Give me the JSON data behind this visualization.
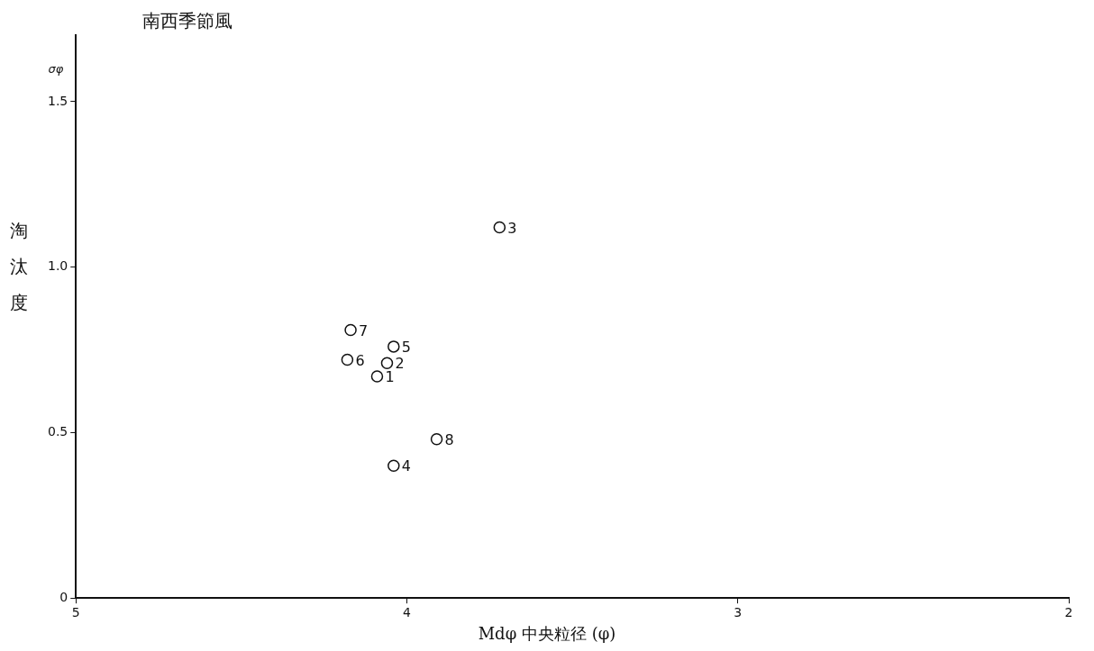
{
  "chart_data": {
    "type": "scatter",
    "title": "南西季節風",
    "xlabel": "Mdφ 中央粒径 (φ)",
    "ylabel": "淘汰度",
    "x": [
      4.09,
      4.06,
      3.72,
      4.04,
      4.04,
      4.18,
      4.17,
      3.91
    ],
    "values": [
      0.67,
      0.71,
      1.12,
      0.4,
      0.76,
      0.72,
      0.81,
      0.48
    ],
    "color": "#111111",
    "marker": "circle",
    "grid": false,
    "legend": false,
    "xlim": [
      5,
      2
    ],
    "xticks": [
      5,
      4,
      3,
      2
    ],
    "ylim": [
      0,
      1.7
    ],
    "yticks": [
      0,
      {
        "value": 0.5,
        "label": "0.5"
      },
      {
        "value": 1,
        "label": "1.0"
      },
      {
        "value": 1.5,
        "label": "1.5"
      }
    ],
    "annotations": [
      "σφ",
      {
        "text": "1",
        "x": 4.09,
        "y": 0.67
      },
      {
        "text": "2",
        "x": 4.06,
        "y": 0.71
      },
      {
        "text": "3",
        "x": 3.72,
        "y": 1.12
      },
      {
        "text": "4",
        "x": 4.04,
        "y": 0.4
      },
      {
        "text": "5",
        "x": 4.04,
        "y": 0.76
      },
      {
        "text": "6",
        "x": 4.18,
        "y": 0.72
      },
      {
        "text": "7",
        "x": 4.17,
        "y": 0.81
      },
      {
        "text": "8",
        "x": 3.91,
        "y": 0.48
      }
    ]
  }
}
